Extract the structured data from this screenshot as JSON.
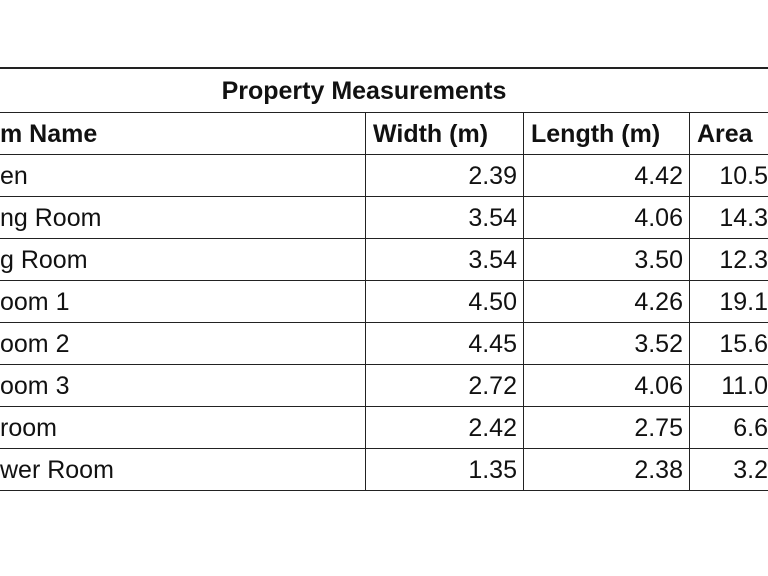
{
  "table": {
    "title": "Property Measurements",
    "header": [
      "m Name",
      "Width (m)",
      "Length (m)",
      "Area"
    ],
    "rows": [
      [
        "en",
        "2.39",
        "4.42",
        "10.5"
      ],
      [
        "ng Room",
        "3.54",
        "4.06",
        "14.3"
      ],
      [
        "g Room",
        "3.54",
        "3.50",
        "12.3"
      ],
      [
        "oom 1",
        "4.50",
        "4.26",
        "19.1"
      ],
      [
        "oom 2",
        "4.45",
        "3.52",
        "15.6"
      ],
      [
        "oom 3",
        "2.72",
        "4.06",
        "11.0"
      ],
      [
        "room",
        "2.42",
        "2.75",
        "6.6"
      ],
      [
        "wer Room",
        "1.35",
        "2.38",
        "3.2"
      ]
    ]
  }
}
